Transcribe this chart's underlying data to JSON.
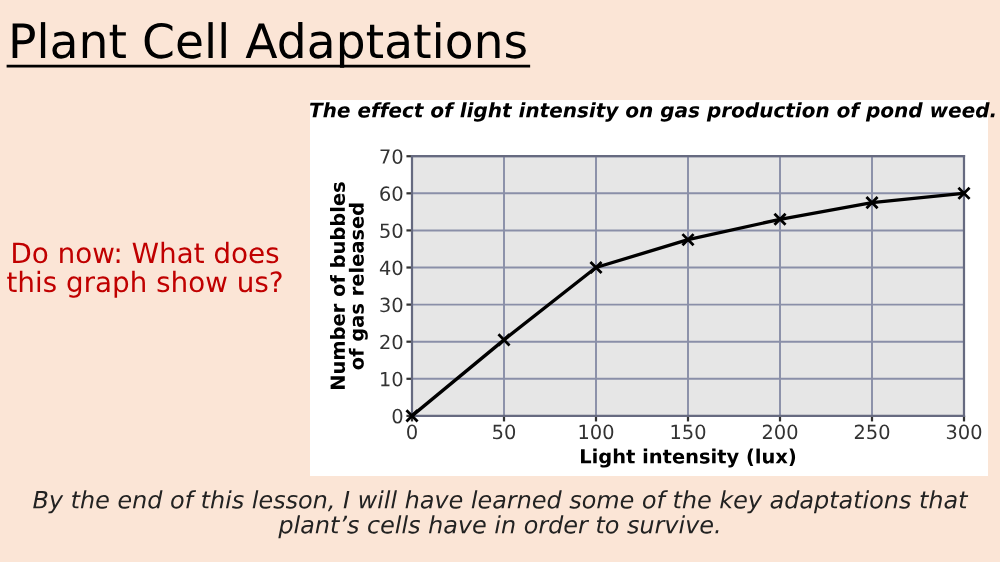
{
  "chart_data": {
    "type": "line",
    "title": "The effect of light intensity on gas production of pond weed.",
    "xlabel": "Light intensity (lux)",
    "ylabel": "Number of bubbles\nof gas released",
    "x": [
      0,
      50,
      100,
      150,
      200,
      250,
      300
    ],
    "series": [
      {
        "color": "#000000",
        "values": [
          0,
          20.5,
          40,
          47.5,
          53,
          57.5,
          60
        ]
      }
    ],
    "xlim": [
      0,
      300
    ],
    "xticks": [
      0,
      50,
      100,
      150,
      200,
      250,
      300
    ],
    "ylim": [
      0,
      70
    ],
    "yticks": [
      0,
      10,
      20,
      30,
      40,
      50,
      60,
      70
    ],
    "grid": true,
    "marker": "cross",
    "line_style": "solid",
    "annotations": [
      "Plant Cell Adaptations",
      "Do now: What does\nthis graph show us?",
      "By the end of this lesson, I will have learned some of the key adaptations that\nplant’s cells have in order to survive."
    ]
  }
}
